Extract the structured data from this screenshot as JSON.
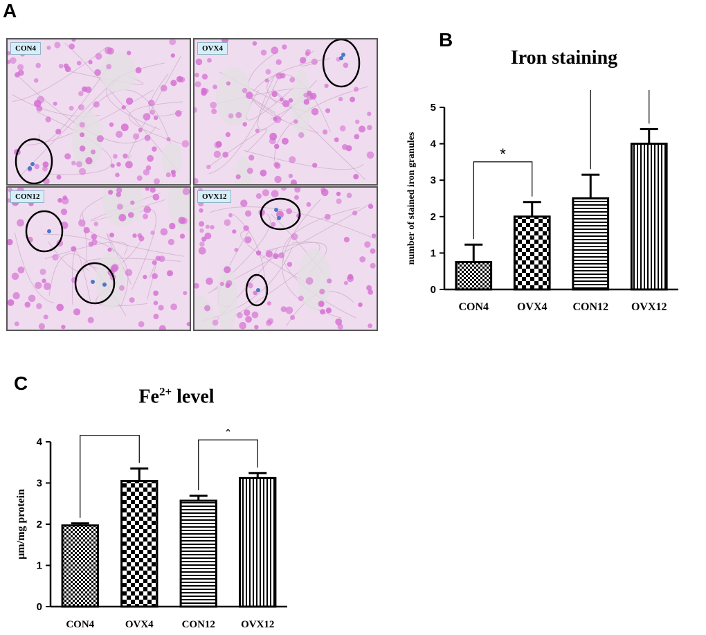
{
  "panels": {
    "a": "A",
    "b": "B",
    "c": "C"
  },
  "micrographs": [
    {
      "label": "CON4"
    },
    {
      "label": "OVX4"
    },
    {
      "label": "CON12"
    },
    {
      "label": "OVX12"
    }
  ],
  "colors": {
    "tissue": "#f0dcef",
    "nuclei": "#d46fd2",
    "iron": "#4a78c8",
    "bars": "#000000"
  },
  "chart_data": [
    {
      "type": "bar",
      "title": "Iron staining",
      "ylabel": "number of stained iron granules",
      "categories": [
        "CON4",
        "OVX4",
        "CON12",
        "OVX12"
      ],
      "values": [
        0.75,
        2.0,
        2.5,
        4.0
      ],
      "errors": [
        0.48,
        0.4,
        0.65,
        0.4
      ],
      "patterns": [
        "checker-fine",
        "checker-coarse",
        "horizontal-lines",
        "vertical-lines"
      ],
      "ylim": [
        0,
        5
      ],
      "yticks": [
        "0",
        "1",
        "2",
        "3",
        "4",
        "5"
      ],
      "significance": [
        {
          "from": "CON4",
          "to": "OVX4",
          "label": "*"
        },
        {
          "from": "CON12",
          "to": "OVX12",
          "label": "*"
        }
      ]
    },
    {
      "type": "bar",
      "title": "Fe",
      "title_sup": "2+",
      "title_suffix": " level",
      "ylabel": "µm/mg protein",
      "categories": [
        "CON4",
        "OVX4",
        "CON12",
        "OVX12"
      ],
      "values": [
        1.97,
        3.05,
        2.57,
        3.12
      ],
      "errors": [
        0.05,
        0.3,
        0.12,
        0.12
      ],
      "patterns": [
        "checker-fine",
        "checker-coarse",
        "horizontal-lines",
        "vertical-lines"
      ],
      "ylim": [
        0,
        4
      ],
      "yticks": [
        "0",
        "1",
        "2",
        "3",
        "4"
      ],
      "significance": [
        {
          "from": "CON4",
          "to": "OVX4",
          "label": "*"
        },
        {
          "from": "CON12",
          "to": "OVX12",
          "label": "*"
        }
      ]
    }
  ]
}
